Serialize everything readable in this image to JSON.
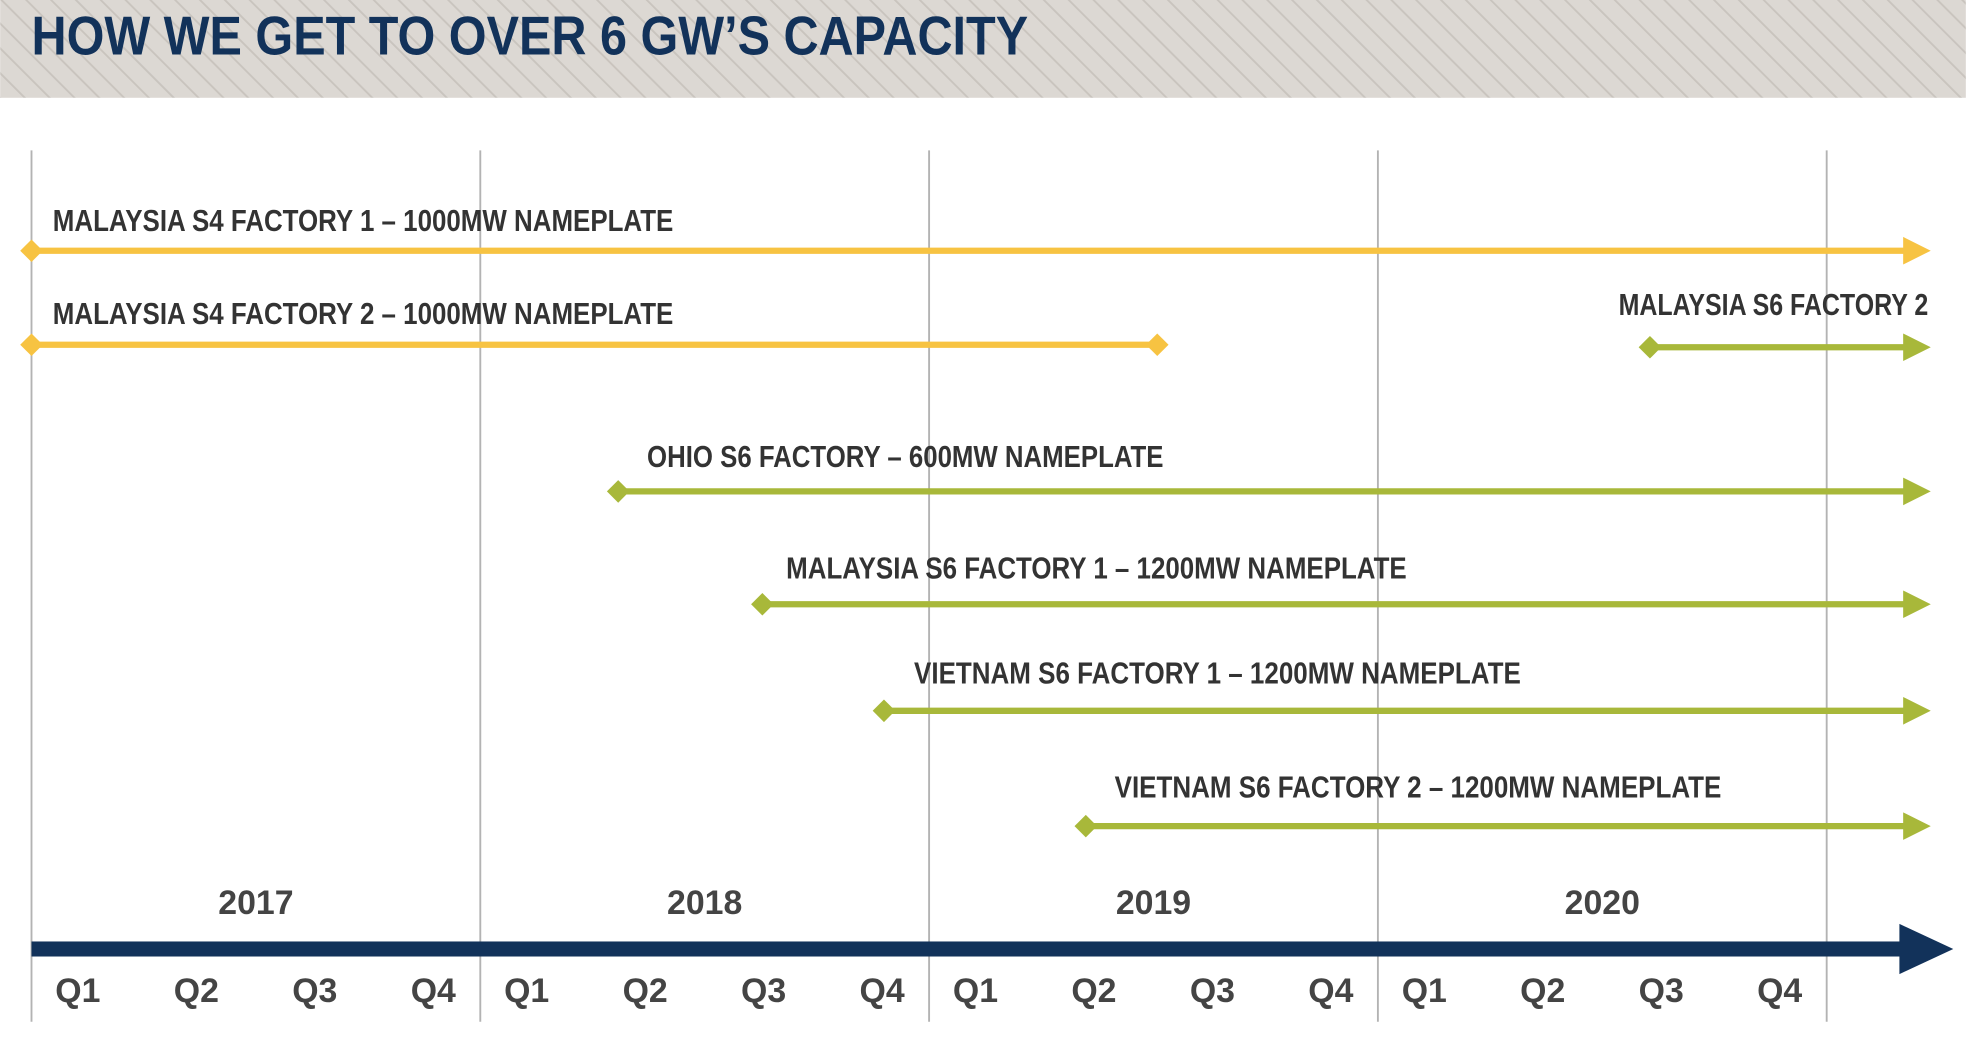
{
  "header": {
    "title": "HOW WE GET TO OVER 6 GW’S CAPACITY"
  },
  "timeline": {
    "years": [
      "2017",
      "2018",
      "2019",
      "2020"
    ],
    "quarters": [
      "Q1",
      "Q2",
      "Q3",
      "Q4",
      "Q1",
      "Q2",
      "Q3",
      "Q4",
      "Q1",
      "Q2",
      "Q3",
      "Q4",
      "Q1",
      "Q2",
      "Q3",
      "Q4"
    ],
    "axis_color": "#12325a",
    "bars": [
      {
        "label": "MALAYSIA S4 FACTORY 1 – 1000MW NAMEPLATE",
        "color": "#f7c342",
        "end": "arrow"
      },
      {
        "label": "MALAYSIA S4 FACTORY 2 – 1000MW NAMEPLATE",
        "color": "#f7c342",
        "end": "diamond"
      },
      {
        "label": "MALAYSIA S6 FACTORY 2",
        "color": "#a8b83a",
        "end": "arrow"
      },
      {
        "label": "OHIO S6 FACTORY – 600MW NAMEPLATE",
        "color": "#a8b83a",
        "end": "arrow"
      },
      {
        "label": "MALAYSIA S6 FACTORY 1 – 1200MW NAMEPLATE",
        "color": "#a8b83a",
        "end": "arrow"
      },
      {
        "label": "VIETNAM S6 FACTORY 1 – 1200MW NAMEPLATE",
        "color": "#a8b83a",
        "end": "arrow"
      },
      {
        "label": "VIETNAM S6 FACTORY 2 – 1200MW NAMEPLATE",
        "color": "#a8b83a",
        "end": "arrow"
      }
    ]
  }
}
